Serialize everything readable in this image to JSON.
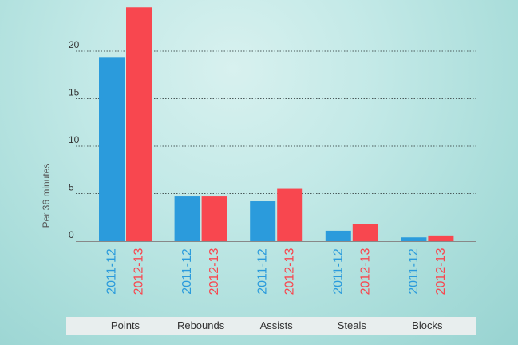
{
  "chart_data": {
    "type": "bar",
    "ylabel": "Per 36 minutes",
    "ylim": [
      0,
      25
    ],
    "yticks": [
      0,
      5,
      10,
      15,
      20
    ],
    "grid": true,
    "categories": [
      "Points",
      "Rebounds",
      "Assists",
      "Steals",
      "Blocks"
    ],
    "series": [
      {
        "name": "2011-12",
        "color": "#2b9bdc",
        "values": [
          19.3,
          4.7,
          4.2,
          1.1,
          0.4
        ]
      },
      {
        "name": "2012-13",
        "color": "#f8474f",
        "values": [
          24.6,
          4.7,
          5.5,
          1.8,
          0.6
        ]
      }
    ]
  }
}
